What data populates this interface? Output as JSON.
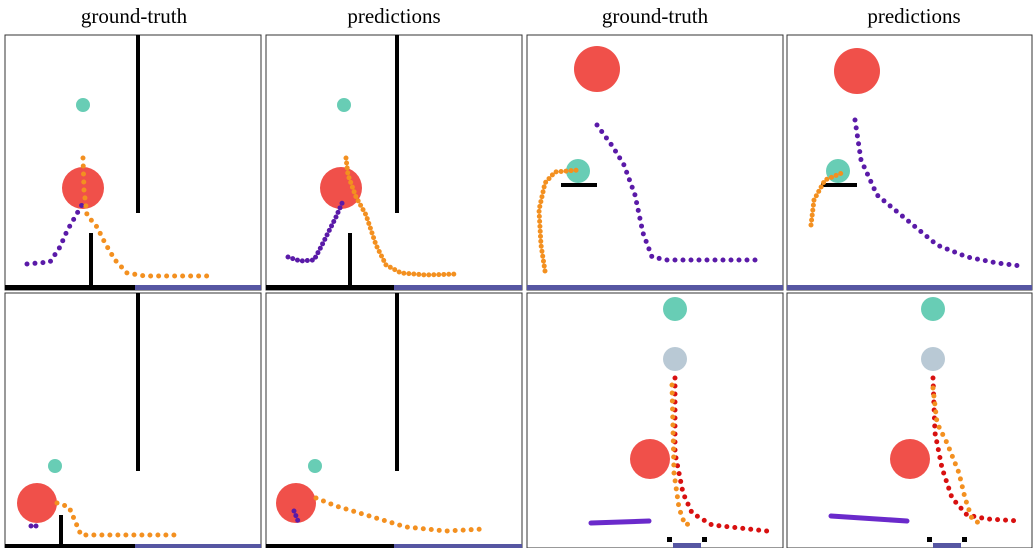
{
  "header": {
    "columns": [
      "ground-truth",
      "predictions",
      "ground-truth",
      "predictions"
    ]
  }
}
